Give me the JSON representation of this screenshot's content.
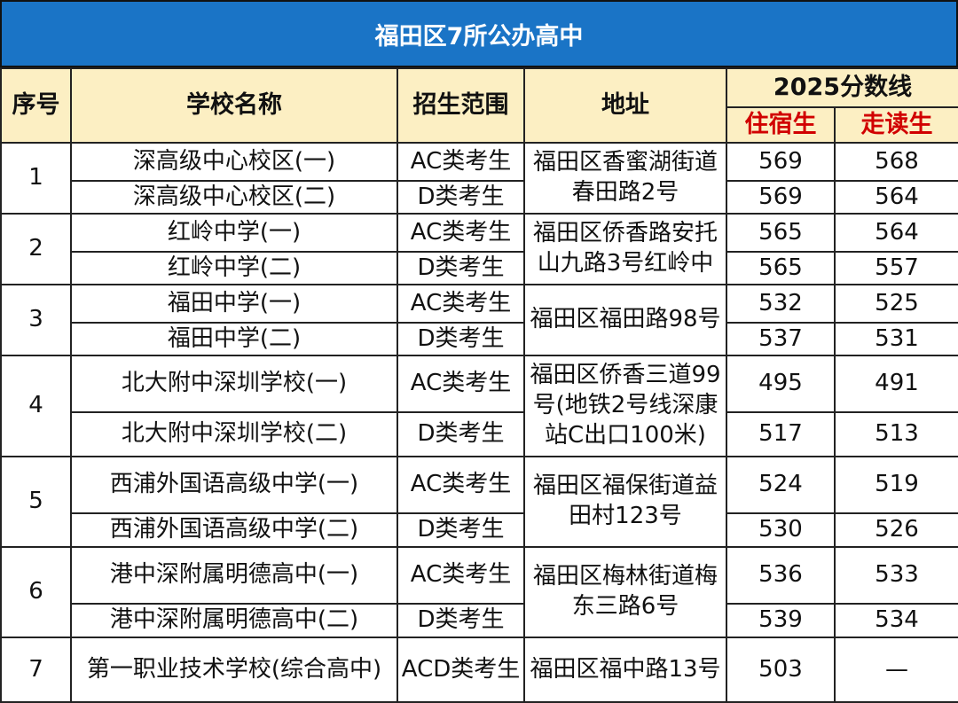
{
  "title": "福田区7所公办高中",
  "headers": {
    "index": "序号",
    "school": "学校名称",
    "scope": "招生范围",
    "address": "地址",
    "score_group": "2025分数线",
    "boarding": "住宿生",
    "day": "走读生"
  },
  "groups": [
    {
      "index": "1",
      "address": "福田区香蜜湖街道春田路2号",
      "rows": [
        {
          "school": "深高级中心校区(一)",
          "scope": "AC类考生",
          "boarding": "569",
          "day": "568"
        },
        {
          "school": "深高级中心校区(二)",
          "scope": "D类考生",
          "boarding": "569",
          "day": "564"
        }
      ]
    },
    {
      "index": "2",
      "address": "福田区侨香路安托山九路3号红岭中",
      "rows": [
        {
          "school": "红岭中学(一)",
          "scope": "AC类考生",
          "boarding": "565",
          "day": "564"
        },
        {
          "school": "红岭中学(二)",
          "scope": "D类考生",
          "boarding": "565",
          "day": "557"
        }
      ]
    },
    {
      "index": "3",
      "address": "福田区福田路98号",
      "rows": [
        {
          "school": "福田中学(一)",
          "scope": "AC类考生",
          "boarding": "532",
          "day": "525"
        },
        {
          "school": "福田中学(二)",
          "scope": "D类考生",
          "boarding": "537",
          "day": "531"
        }
      ]
    },
    {
      "index": "4",
      "address": "福田区侨香三道99号(地铁2号线深康站C出口100米)",
      "rows": [
        {
          "school": "北大附中深圳学校(一)",
          "scope": "AC类考生",
          "boarding": "495",
          "day": "491"
        },
        {
          "school": "北大附中深圳学校(二)",
          "scope": "D类考生",
          "boarding": "517",
          "day": "513"
        }
      ]
    },
    {
      "index": "5",
      "address": "福田区福保街道益田村123号",
      "rows": [
        {
          "school": "西浦外国语高级中学(一)",
          "scope": "AC类考生",
          "boarding": "524",
          "day": "519"
        },
        {
          "school": "西浦外国语高级中学(二)",
          "scope": "D类考生",
          "boarding": "530",
          "day": "526"
        }
      ]
    },
    {
      "index": "6",
      "address": "福田区梅林街道梅东三路6号",
      "rows": [
        {
          "school": "港中深附属明德高中(一)",
          "scope": "AC类考生",
          "boarding": "536",
          "day": "533"
        },
        {
          "school": "港中深附属明德高中(二)",
          "scope": "D类考生",
          "boarding": "539",
          "day": "534"
        }
      ]
    },
    {
      "index": "7",
      "address": "福田区福中路13号",
      "rows": [
        {
          "school": "第一职业技术学校(综合高中)",
          "scope": "ACD类考生",
          "boarding": "503",
          "day": "—"
        }
      ]
    }
  ]
}
